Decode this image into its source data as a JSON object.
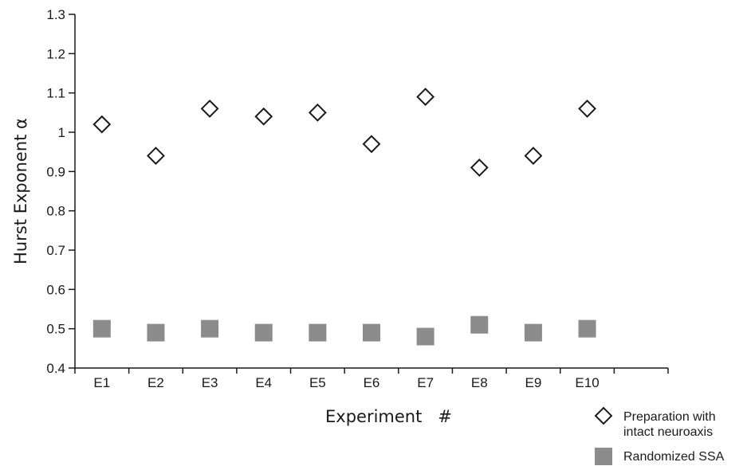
{
  "chart_data": {
    "type": "scatter",
    "title": "",
    "xlabel": "Experiment   #",
    "ylabel": "Hurst  Exponent   α",
    "categories": [
      "E1",
      "E2",
      "E3",
      "E4",
      "E5",
      "E6",
      "E7",
      "E8",
      "E9",
      "E10"
    ],
    "ylim": [
      0.4,
      1.3
    ],
    "yticks": [
      "0.4",
      "0.5",
      "0.6",
      "0.7",
      "0.8",
      "0.9",
      "1",
      "1.1",
      "1.2",
      "1.3"
    ],
    "grid": false,
    "legend_position": "bottom-right",
    "series": [
      {
        "name": "Preparation with intact neuroaxis",
        "name_lines": [
          "Preparation with",
          "intact neuroaxis"
        ],
        "marker": "open-diamond",
        "color": "#1a1a1a",
        "values": [
          1.02,
          0.94,
          1.06,
          1.04,
          1.05,
          0.97,
          1.09,
          0.91,
          0.94,
          1.06
        ]
      },
      {
        "name": "Randomized SSA",
        "name_lines": [
          "Randomized SSA"
        ],
        "marker": "filled-square",
        "color": "#8c8c8c",
        "values": [
          0.5,
          0.49,
          0.5,
          0.49,
          0.49,
          0.49,
          0.48,
          0.51,
          0.49,
          0.5
        ]
      }
    ]
  }
}
